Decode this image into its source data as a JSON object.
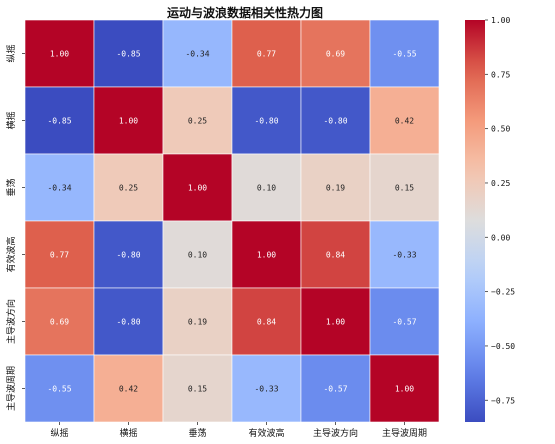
{
  "chart_data": {
    "type": "heatmap",
    "title": "运动与波浪数据相关性热力图",
    "row_labels": [
      "纵摇",
      "横摇",
      "垂荡",
      "有效波高",
      "主导波方向",
      "主导波周期"
    ],
    "col_labels": [
      "纵摇",
      "横摇",
      "垂荡",
      "有效波高",
      "主导波方向",
      "主导波周期"
    ],
    "values": [
      [
        1.0,
        -0.85,
        -0.34,
        0.77,
        0.69,
        -0.55
      ],
      [
        -0.85,
        1.0,
        0.25,
        -0.8,
        -0.8,
        0.42
      ],
      [
        -0.34,
        0.25,
        1.0,
        0.1,
        0.19,
        0.15
      ],
      [
        0.77,
        -0.8,
        0.1,
        1.0,
        0.84,
        -0.33
      ],
      [
        0.69,
        -0.8,
        0.19,
        0.84,
        1.0,
        -0.57
      ],
      [
        -0.55,
        0.42,
        0.15,
        -0.33,
        -0.57,
        1.0
      ]
    ],
    "value_labels": [
      [
        "1.00",
        "-0.85",
        "-0.34",
        "0.77",
        "0.69",
        "-0.55"
      ],
      [
        "-0.85",
        "1.00",
        "0.25",
        "-0.80",
        "-0.80",
        "0.42"
      ],
      [
        "-0.34",
        "0.25",
        "1.00",
        "0.10",
        "0.19",
        "0.15"
      ],
      [
        "0.77",
        "-0.80",
        "0.10",
        "1.00",
        "0.84",
        "-0.33"
      ],
      [
        "0.69",
        "-0.80",
        "0.19",
        "0.84",
        "1.00",
        "-0.57"
      ],
      [
        "-0.55",
        "0.42",
        "0.15",
        "-0.33",
        "-0.57",
        "1.00"
      ]
    ],
    "colormap": "coolwarm",
    "colorbar": {
      "range": [
        -0.85,
        1.0
      ],
      "ticks": [
        1.0,
        0.75,
        0.5,
        0.25,
        0.0,
        -0.25,
        -0.5,
        -0.75
      ],
      "tick_labels": [
        "1.00",
        "0.75",
        "0.50",
        "0.25",
        "0.00",
        "−0.25",
        "−0.50",
        "−0.75"
      ]
    }
  }
}
